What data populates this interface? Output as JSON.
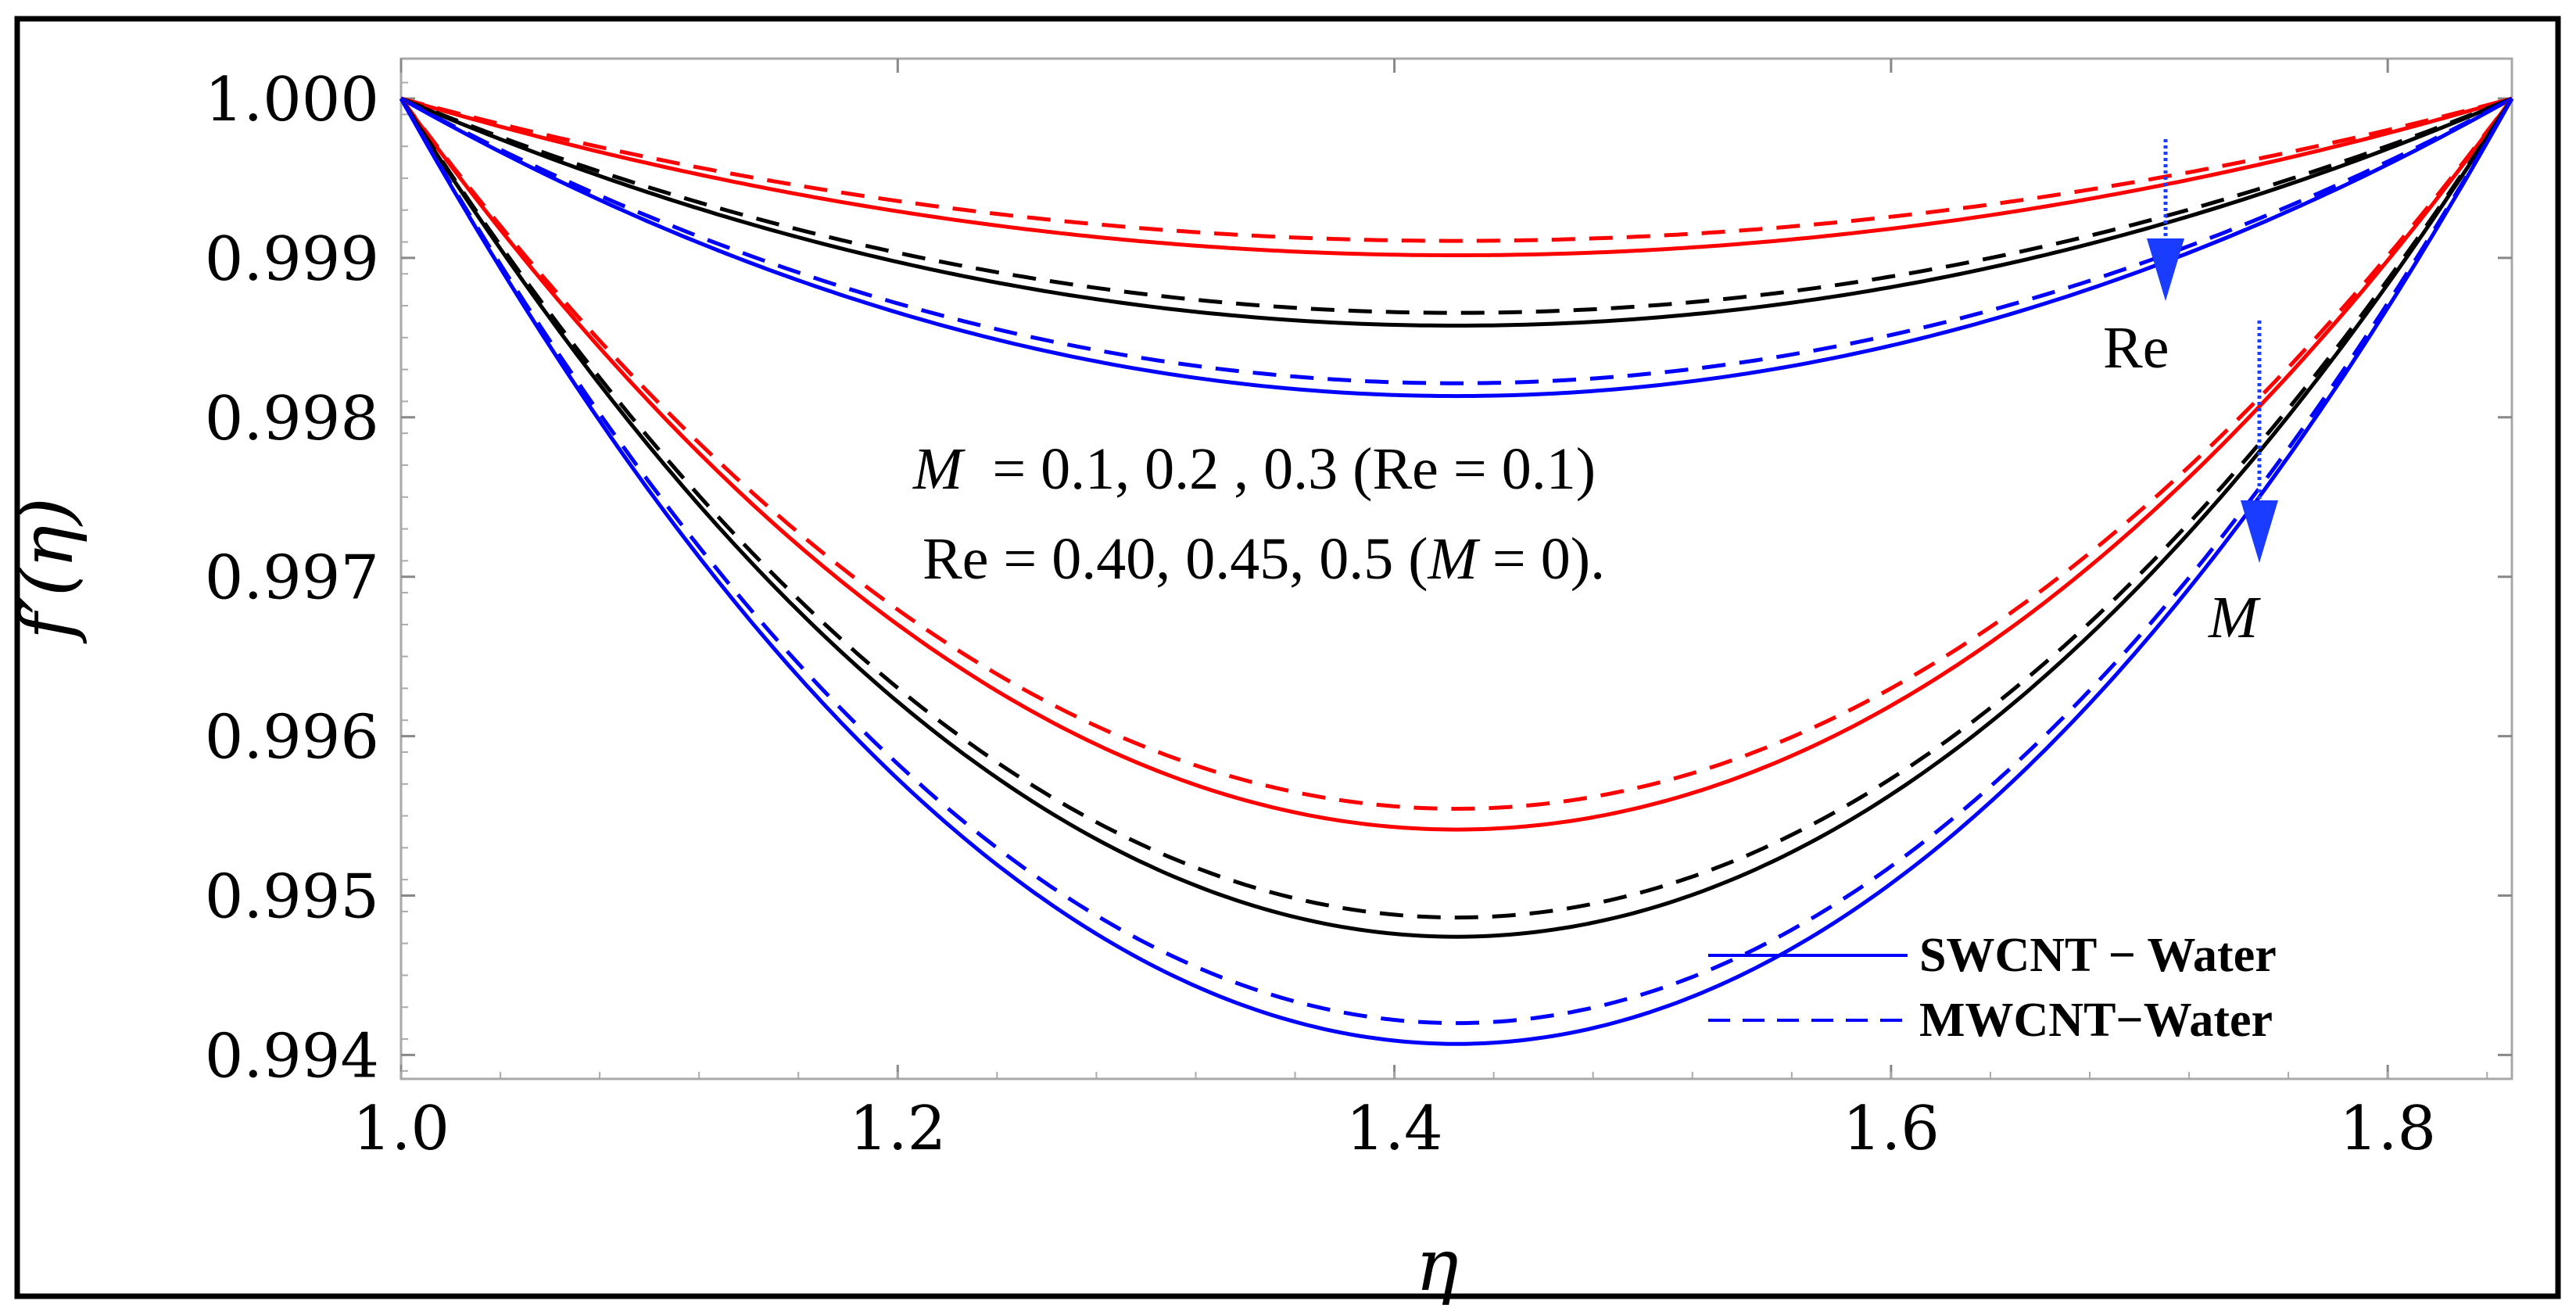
{
  "chart_data": {
    "type": "line",
    "xlabel": "η",
    "ylabel": "f′(η)",
    "xlim": [
      1.0,
      1.85
    ],
    "ylim": [
      0.99385,
      1.00025
    ],
    "x_ticks": [
      "1.0",
      "1.2",
      "1.4",
      "1.6",
      "1.8"
    ],
    "y_ticks": [
      "1.000",
      "0.999",
      "0.998",
      "0.997",
      "0.996",
      "0.995",
      "0.994"
    ],
    "x_tick_values": [
      1.0,
      1.2,
      1.4,
      1.6,
      1.8
    ],
    "y_tick_values": [
      1.0,
      0.999,
      0.998,
      0.997,
      0.996,
      0.995,
      0.994
    ],
    "curve_shape": "parabola through (1.0, 1.000) and (1.85, 1.000) with minimum at eta = 1.4",
    "series": [
      {
        "name": "Re = 0.40 (SWCNT - Water)",
        "color": "#ff0000",
        "dash": "solid",
        "minimum": 0.99902
      },
      {
        "name": "Re = 0.40 (MWCNT-Water)",
        "color": "#ff0000",
        "dash": "dashed",
        "minimum": 0.99911
      },
      {
        "name": "Re = 0.45 (SWCNT - Water)",
        "color": "#000000",
        "dash": "solid",
        "minimum": 0.99858
      },
      {
        "name": "Re = 0.45 (MWCNT-Water)",
        "color": "#000000",
        "dash": "dashed",
        "minimum": 0.99866
      },
      {
        "name": "Re = 0.5 (SWCNT - Water)",
        "color": "#0000ff",
        "dash": "solid",
        "minimum": 0.99814
      },
      {
        "name": "Re = 0.5 (MWCNT-Water)",
        "color": "#0000ff",
        "dash": "dashed",
        "minimum": 0.99822
      },
      {
        "name": "M = 0.1 (SWCNT - Water)",
        "color": "#ff0000",
        "dash": "solid",
        "minimum": 0.99543
      },
      {
        "name": "M = 0.1 (MWCNT-Water)",
        "color": "#ff0000",
        "dash": "dashed",
        "minimum": 0.99556
      },
      {
        "name": "M = 0.2 (SWCNT - Water)",
        "color": "#000000",
        "dash": "solid",
        "minimum": 0.99476
      },
      {
        "name": "M = 0.2 (MWCNT-Water)",
        "color": "#000000",
        "dash": "dashed",
        "minimum": 0.99488
      },
      {
        "name": "M = 0.3 (SWCNT - Water)",
        "color": "#0000ff",
        "dash": "solid",
        "minimum": 0.99409
      },
      {
        "name": "M = 0.3 (MWCNT-Water)",
        "color": "#0000ff",
        "dash": "dashed",
        "minimum": 0.99422
      }
    ],
    "annotations": {
      "line1_sym": "M",
      "line1_rest": "  = 0.1, 0.2 , 0.3 (Re = 0.1)",
      "line2_start": "Re = 0.40, 0.45, 0.5 (",
      "line2_sym": "M",
      "line2_end": " = 0).",
      "re_arrow_label": "Re",
      "m_arrow_label": "M"
    },
    "legend": {
      "placement": "bottom-right",
      "entries": [
        {
          "label": "SWCNT − Water",
          "color": "#0000ff",
          "dash": "solid"
        },
        {
          "label": "MWCNT−Water",
          "color": "#0000ff",
          "dash": "dashed"
        }
      ]
    },
    "arrow_color": "#1a3cff"
  }
}
